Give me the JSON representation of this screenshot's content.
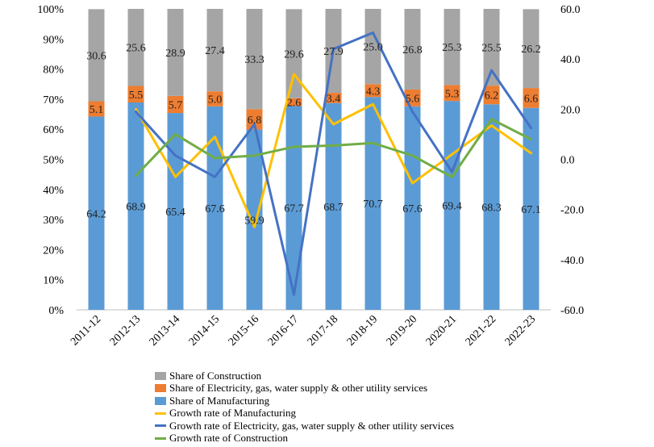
{
  "chart_data": {
    "type": "bar",
    "stacked": true,
    "categories": [
      "2011-12",
      "2012-13",
      "2013-14",
      "2014-15",
      "2015-16",
      "2016-17",
      "2017-18",
      "2018-19",
      "2019-20",
      "2020-21",
      "2021-22",
      "2022-23"
    ],
    "left_axis": {
      "min": 0,
      "max": 100,
      "ticks": [
        "0%",
        "10%",
        "20%",
        "30%",
        "40%",
        "50%",
        "60%",
        "70%",
        "80%",
        "90%",
        "100%"
      ]
    },
    "right_axis": {
      "min": -60,
      "max": 60,
      "ticks": [
        "-60.0",
        "-40.0",
        "-20.0",
        "0.0",
        "20.0",
        "40.0",
        "60.0"
      ]
    },
    "bar_series": [
      {
        "name": "Share of Manufacturing",
        "color": "#5b9bd5",
        "values": [
          64.2,
          68.9,
          65.4,
          67.6,
          59.9,
          67.7,
          68.7,
          70.7,
          67.6,
          69.4,
          68.3,
          67.1
        ]
      },
      {
        "name": "Share of Electricity, gas, water supply & other utility services",
        "color": "#ed7d31",
        "values": [
          5.1,
          5.5,
          5.7,
          5.0,
          6.8,
          2.6,
          3.4,
          4.3,
          5.6,
          5.3,
          6.2,
          6.6
        ]
      },
      {
        "name": "Share of Construction",
        "color": "#a5a5a5",
        "values": [
          30.6,
          25.6,
          28.9,
          27.4,
          33.3,
          29.6,
          27.9,
          25.0,
          26.8,
          25.3,
          25.5,
          26.2
        ]
      }
    ],
    "line_series": [
      {
        "name": "Growth rate of Manufacturing",
        "color": "#ffc000",
        "values": [
          null,
          20.0,
          -7.0,
          9.0,
          -27.0,
          34.0,
          14.0,
          22.0,
          -9.5,
          2.0,
          13.5,
          2.5
        ]
      },
      {
        "name": "Growth rate of Electricity, gas, water supply & other utility services",
        "color": "#4472c4",
        "values": [
          null,
          19.0,
          1.5,
          -7.0,
          14.0,
          -54.0,
          44.0,
          50.5,
          19.0,
          -5.0,
          35.5,
          12.5
        ]
      },
      {
        "name": "Growth rate of Construction",
        "color": "#70ad47",
        "values": [
          null,
          -6.5,
          10.0,
          0.5,
          1.5,
          5.0,
          5.5,
          6.5,
          1.5,
          -7.0,
          16.0,
          8.0
        ]
      }
    ]
  },
  "legend": [
    {
      "label": "Share of Construction",
      "kind": "bar",
      "color": "#a5a5a5"
    },
    {
      "label": "Share of Electricity, gas, water supply & other utility services",
      "kind": "bar",
      "color": "#ed7d31"
    },
    {
      "label": "Share of Manufacturing",
      "kind": "bar",
      "color": "#5b9bd5"
    },
    {
      "label": "Growth rate of Manufacturing",
      "kind": "line",
      "color": "#ffc000"
    },
    {
      "label": "Growth rate of Electricity, gas, water supply & other utility services",
      "kind": "line",
      "color": "#4472c4"
    },
    {
      "label": "Growth rate of Construction",
      "kind": "line",
      "color": "#70ad47"
    }
  ]
}
